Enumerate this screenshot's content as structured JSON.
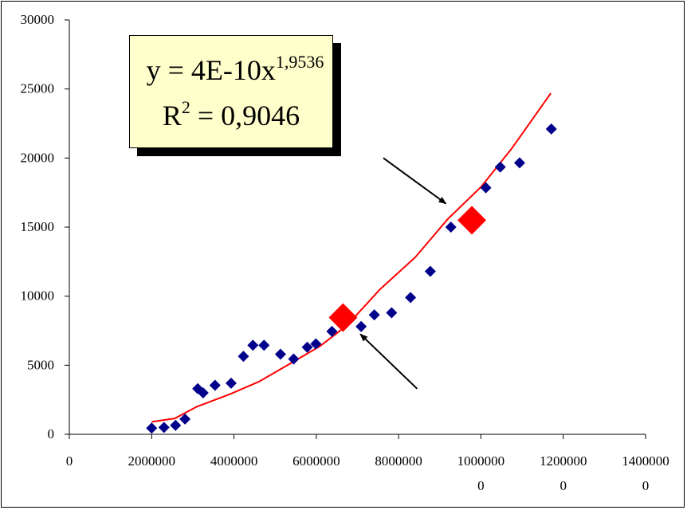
{
  "chart_data": {
    "type": "scatter",
    "x_ticks": [
      {
        "value": 0,
        "lines": [
          "0"
        ]
      },
      {
        "value": 2000000,
        "lines": [
          "2000000"
        ]
      },
      {
        "value": 4000000,
        "lines": [
          "4000000"
        ]
      },
      {
        "value": 6000000,
        "lines": [
          "6000000"
        ]
      },
      {
        "value": 8000000,
        "lines": [
          "8000000"
        ]
      },
      {
        "value": 10000000,
        "lines": [
          "1000000",
          "0"
        ]
      },
      {
        "value": 12000000,
        "lines": [
          "1200000",
          "0"
        ]
      },
      {
        "value": 14000000,
        "lines": [
          "1400000",
          "0"
        ]
      }
    ],
    "y_ticks": [
      0,
      5000,
      10000,
      15000,
      20000,
      25000,
      30000
    ],
    "xlim": [
      0,
      14000000
    ],
    "ylim": [
      0,
      30000
    ],
    "series": [
      {
        "kind": "points",
        "color": "#00008b",
        "points": [
          [
            2000000,
            450
          ],
          [
            2300000,
            500
          ],
          [
            2580000,
            650
          ],
          [
            2810000,
            1100
          ],
          [
            3120000,
            3300
          ],
          [
            3250000,
            3000
          ],
          [
            3540000,
            3550
          ],
          [
            3930000,
            3700
          ],
          [
            4230000,
            5650
          ],
          [
            4460000,
            6450
          ],
          [
            4730000,
            6450
          ],
          [
            5130000,
            5800
          ],
          [
            5450000,
            5450
          ],
          [
            5780000,
            6300
          ],
          [
            5990000,
            6550
          ],
          [
            6380000,
            7450
          ],
          [
            7090000,
            7800
          ],
          [
            7410000,
            8650
          ],
          [
            7830000,
            8800
          ],
          [
            8290000,
            9900
          ],
          [
            8770000,
            11800
          ],
          [
            9270000,
            15000
          ],
          [
            10120000,
            17850
          ],
          [
            10470000,
            19350
          ],
          [
            10940000,
            19650
          ],
          [
            11710000,
            22100
          ]
        ]
      },
      {
        "kind": "highlight",
        "color": "#ff0000",
        "points": [
          [
            6650000,
            8450
          ],
          [
            9780000,
            15500
          ]
        ]
      },
      {
        "kind": "trendline",
        "color": "#ff0000",
        "points": [
          [
            2000000,
            900
          ],
          [
            2560000,
            1150
          ],
          [
            3100000,
            2000
          ],
          [
            3900000,
            2900
          ],
          [
            4600000,
            3800
          ],
          [
            5300000,
            5000
          ],
          [
            6100000,
            6400
          ],
          [
            6750000,
            7900
          ],
          [
            7550000,
            10500
          ],
          [
            8400000,
            12800
          ],
          [
            9200000,
            15600
          ],
          [
            10000000,
            17900
          ],
          [
            10750000,
            20700
          ],
          [
            11700000,
            24700
          ]
        ]
      }
    ],
    "annotations": {
      "equation": {
        "prefix": "y = 4E-10x",
        "exponent": "1,9536"
      },
      "r_squared": {
        "prefix": "R",
        "exponent": "2",
        "suffix": " = 0,9046"
      }
    },
    "arrows": [
      {
        "from": [
          7630000,
          20000
        ],
        "to": [
          9150000,
          16700
        ]
      },
      {
        "from": [
          8450000,
          3300
        ],
        "to": [
          7070000,
          7250
        ]
      }
    ],
    "grid": false,
    "legend": "none"
  }
}
